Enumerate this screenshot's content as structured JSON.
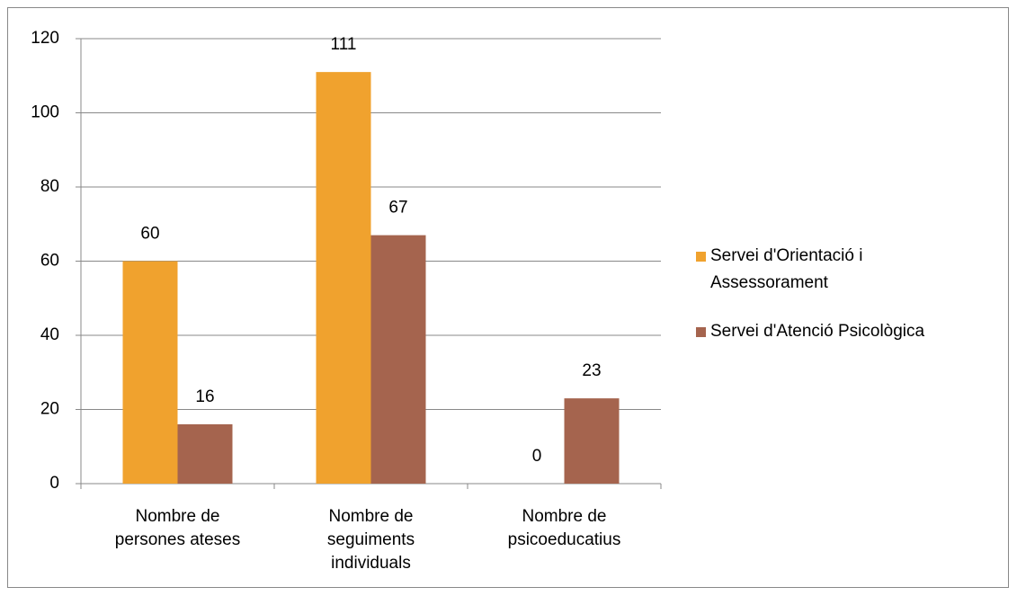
{
  "chart_data": {
    "type": "bar",
    "categories": [
      "Nombre de\npersones ateses",
      "Nombre de\nseguiments\nindividuals",
      "Nombre de\npsicoeducatius"
    ],
    "series": [
      {
        "name": "Servei d'Orientació i\nAssessorament",
        "color": "#f0a22e",
        "values": [
          60,
          111,
          0
        ]
      },
      {
        "name": "Servei d'Atenció Psicològica",
        "color": "#a5644e",
        "values": [
          16,
          67,
          23
        ]
      }
    ],
    "ylim": [
      0,
      120
    ],
    "yticks": [
      0,
      20,
      40,
      60,
      80,
      100,
      120
    ],
    "grid": true,
    "legend": "right"
  }
}
